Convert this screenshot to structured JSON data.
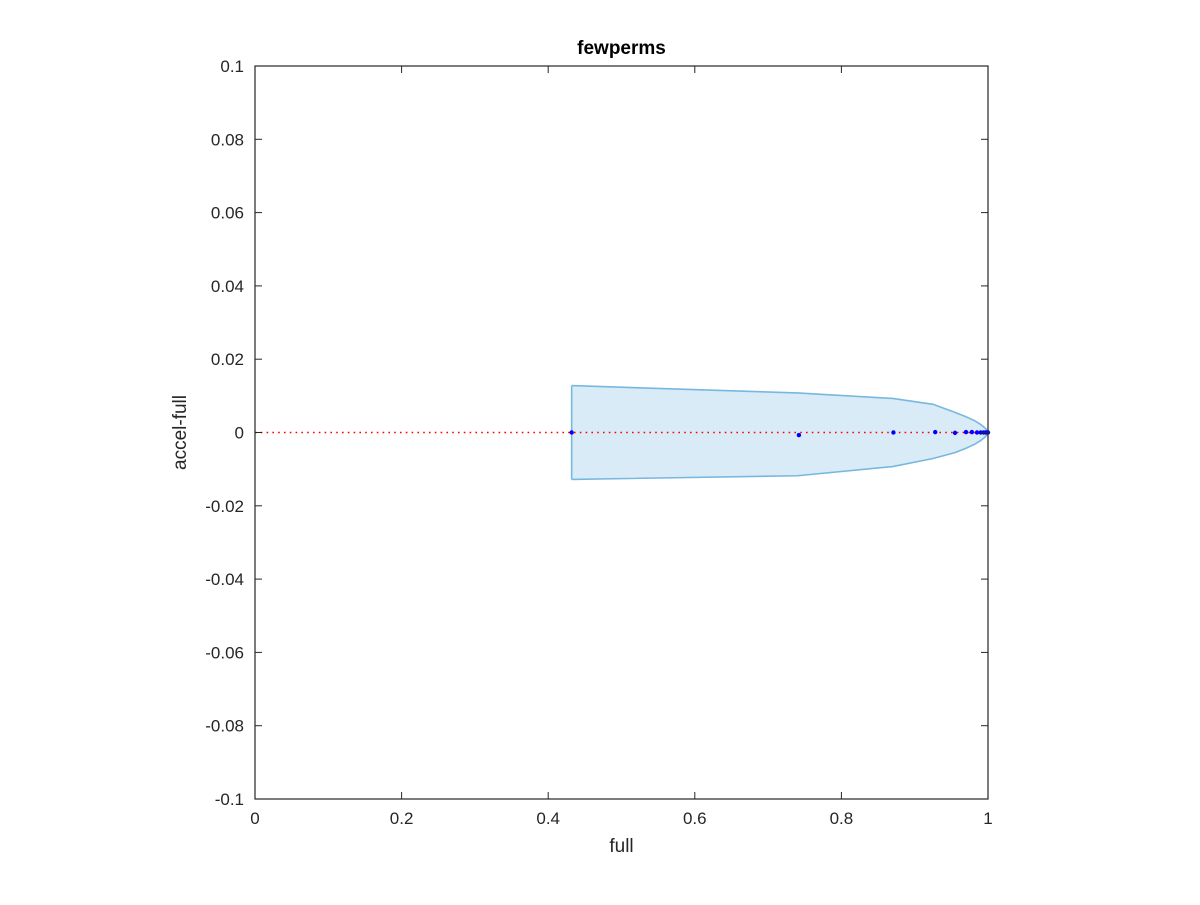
{
  "chart_data": {
    "type": "scatter",
    "title": "fewperms",
    "xlabel": "full",
    "ylabel": "accel-full",
    "xlim": [
      0,
      1
    ],
    "ylim": [
      -0.1,
      0.1
    ],
    "xticks": [
      0,
      0.2,
      0.4,
      0.6,
      0.8,
      1
    ],
    "xtick_labels": [
      "0",
      "0.2",
      "0.4",
      "0.6",
      "0.8",
      "1"
    ],
    "yticks": [
      -0.1,
      -0.08,
      -0.06,
      -0.04,
      -0.02,
      0,
      0.02,
      0.04,
      0.06,
      0.08,
      0.1
    ],
    "ytick_labels": [
      "-0.1",
      "-0.08",
      "-0.06",
      "-0.04",
      "-0.02",
      "0",
      "0.02",
      "0.04",
      "0.06",
      "0.08",
      "0.1"
    ],
    "grid": false,
    "reference_line": {
      "y": 0,
      "style": "dotted",
      "color": "#ff0000"
    },
    "band": {
      "color": "#78b8df",
      "fill_opacity": 0.28,
      "x": [
        0.432,
        0.74,
        0.87,
        0.925,
        0.955,
        0.97,
        0.982,
        0.99,
        0.995,
        0.998,
        1.0
      ],
      "upper": [
        0.0128,
        0.0108,
        0.0093,
        0.0077,
        0.0055,
        0.0043,
        0.0032,
        0.0022,
        0.0014,
        0.0008,
        0.0003
      ],
      "lower": [
        -0.0128,
        -0.0118,
        -0.0093,
        -0.0071,
        -0.0055,
        -0.0043,
        -0.0032,
        -0.0022,
        -0.0014,
        -0.0008,
        -0.0003
      ]
    },
    "points": {
      "color": "#0000ff",
      "x": [
        0.432,
        0.742,
        0.871,
        0.928,
        0.955,
        0.97,
        0.978,
        0.985,
        0.99,
        0.994,
        0.997,
        0.999,
        1.0
      ],
      "y": [
        0.0,
        -0.0007,
        0.0,
        0.0001,
        -0.0001,
        0.0001,
        0.0001,
        0.0,
        0.0,
        0.0,
        0.0,
        0.0,
        0.0
      ]
    }
  }
}
